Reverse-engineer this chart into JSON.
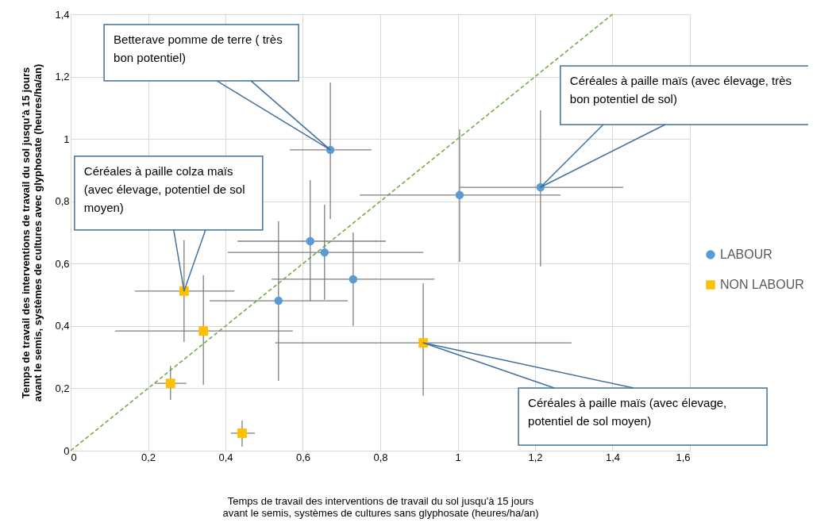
{
  "chart_data": {
    "type": "scatter",
    "xlabel": "Temps de travail des interventions de travail du sol jusqu'à 15 jours avant le semis, systèmes de cultures sans glyphosate (heures/ha/an)",
    "ylabel": "Temps de travail des interventions de travail du sol jusqu'à 15 jours avant le semis, systèmes de cultures avec glyphosate (heures/ha/an)",
    "xlim": [
      0,
      1.6
    ],
    "ylim": [
      0,
      1.4
    ],
    "xticks": [
      0,
      {
        "value": 0.2,
        "label": "0,2"
      },
      {
        "value": 0.4,
        "label": "0,4"
      },
      {
        "value": 0.6,
        "label": "0,6"
      },
      {
        "value": 0.8,
        "label": "0,8"
      },
      1,
      {
        "value": 1.2,
        "label": "1,2"
      },
      {
        "value": 1.4,
        "label": "1,4"
      },
      {
        "value": 1.6,
        "label": "1,6"
      }
    ],
    "yticks": [
      0,
      {
        "value": 0.2,
        "label": "0,2"
      },
      {
        "value": 0.4,
        "label": "0,4"
      },
      {
        "value": 0.6,
        "label": "0,6"
      },
      {
        "value": 0.8,
        "label": "0,8"
      },
      1,
      {
        "value": 1.2,
        "label": "1,2"
      },
      {
        "value": 1.4,
        "label": "1,4"
      }
    ],
    "grid": true,
    "legend": "right",
    "series": [
      {
        "name": "LABOUR",
        "color": "#5b9bd5",
        "marker": "circle",
        "x": [
          0.671,
          1.005,
          1.214,
          0.619,
          0.656,
          0.73,
          0.537
        ],
        "values": [
          0.965,
          0.82,
          0.845,
          0.672,
          0.636,
          0.55,
          0.481
        ],
        "errors": [
          [
            0.743,
            1.181
          ],
          [
            0.606,
            1.031
          ],
          [
            0.591,
            1.092
          ],
          [
            0.479,
            0.868
          ],
          [
            0.484,
            0.789
          ],
          [
            0.4,
            0.7
          ],
          [
            0.224,
            0.736
          ]
        ],
        "xerrors": [
          [
            0.566,
            0.777
          ],
          [
            0.747,
            1.266
          ],
          [
            1.005,
            1.428
          ],
          [
            0.431,
            0.814
          ],
          [
            0.406,
            0.911
          ],
          [
            0.519,
            0.94
          ],
          [
            0.359,
            0.716
          ]
        ]
      },
      {
        "name": "NON LABOUR",
        "color": "#ffc000",
        "marker": "square",
        "x": [
          0.293,
          0.343,
          0.258,
          0.443,
          0.911
        ],
        "values": [
          0.512,
          0.384,
          0.216,
          0.056,
          0.346
        ],
        "errors": [
          [
            0.349,
            0.675
          ],
          [
            0.211,
            0.563
          ],
          [
            0.163,
            0.272
          ],
          [
            0.013,
            0.097
          ],
          [
            0.176,
            0.537
          ]
        ],
        "xerrors": [
          [
            0.166,
            0.423
          ],
          [
            0.115,
            0.574
          ],
          [
            0.217,
            0.299
          ],
          [
            0.414,
            0.476
          ],
          [
            0.529,
            1.294
          ]
        ]
      },
      {
        "type": "line",
        "color": "#70ad47",
        "line_style": "dashed",
        "x": [
          0,
          1.4
        ],
        "values": [
          0,
          1.4
        ]
      }
    ],
    "annotations": [
      "Betterave pomme de terre ( très bon potentiel)",
      "Céréales à paille maïs (avec élevage, très bon potentiel de sol)",
      "Céréales à paille colza maïs (avec élevage, potentiel de sol moyen)",
      "Céréales à paille maïs (avec élevage, potentiel de sol moyen)"
    ]
  }
}
